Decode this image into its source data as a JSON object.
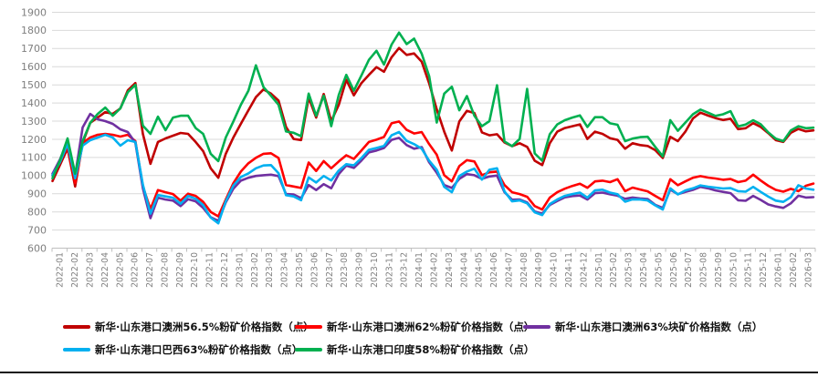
{
  "chart_data": {
    "type": "line",
    "title": "",
    "xlabel": "",
    "ylabel": "",
    "grid": true,
    "legend_position": "bottom",
    "y_axis": {
      "min": 600,
      "max": 1900,
      "step": 100,
      "ticks": [
        600,
        700,
        800,
        900,
        1000,
        1100,
        1200,
        1300,
        1400,
        1500,
        1600,
        1700,
        1800,
        1900
      ]
    },
    "x_axis": {
      "note": "monthly ticks, two data samples per month",
      "labels": [
        "2022-01",
        "2022-02",
        "2022-03",
        "2022-04",
        "2022-05",
        "2022-06",
        "2022-07",
        "2022-08",
        "2022-09",
        "2022-10",
        "2022-11",
        "2022-12",
        "2023-01",
        "2023-02",
        "2023-03",
        "2023-04",
        "2023-05",
        "2023-06",
        "2023-07",
        "2023-08",
        "2023-09",
        "2023-10",
        "2023-11",
        "2023-12",
        "2024-01",
        "2024-02",
        "2024-03",
        "2024-04",
        "2024-05",
        "2024-06",
        "2024-07",
        "2024-08",
        "2024-09",
        "2024-10",
        "2024-11",
        "2024-12",
        "2025-01",
        "2025-02",
        "2025-03",
        "2025-04",
        "2025-05",
        "2025-06",
        "2025-07",
        "2025-08",
        "2025-09",
        "2025-10",
        "2025-11",
        "2025-12",
        "2026-01",
        "2026-02",
        "2026-03"
      ]
    },
    "series": [
      {
        "name": "新华·山东港口澳洲56.5%粉矿价格指数（点）",
        "color": "#C00000",
        "values": [
          970,
          1060,
          1150,
          940,
          1180,
          1290,
          1320,
          1350,
          1340,
          1370,
          1470,
          1510,
          1230,
          1065,
          1185,
          1205,
          1220,
          1235,
          1230,
          1185,
          1135,
          1040,
          988,
          1120,
          1210,
          1285,
          1360,
          1432,
          1475,
          1452,
          1413,
          1268,
          1202,
          1196,
          1430,
          1320,
          1450,
          1300,
          1390,
          1528,
          1442,
          1510,
          1555,
          1598,
          1572,
          1652,
          1703,
          1665,
          1673,
          1628,
          1508,
          1365,
          1242,
          1138,
          1298,
          1357,
          1345,
          1238,
          1222,
          1228,
          1182,
          1162,
          1178,
          1158,
          1082,
          1058,
          1178,
          1242,
          1262,
          1272,
          1282,
          1202,
          1242,
          1230,
          1206,
          1197,
          1148,
          1178,
          1168,
          1163,
          1140,
          1097,
          1214,
          1190,
          1242,
          1315,
          1347,
          1331,
          1317,
          1306,
          1313,
          1256,
          1261,
          1289,
          1268,
          1234,
          1196,
          1186,
          1236,
          1257,
          1244,
          1249
        ]
      },
      {
        "name": "新华·山东港口澳洲62%粉矿价格指数（点）",
        "color": "#FF0000",
        "values": [
          1000,
          1080,
          1165,
          960,
          1180,
          1210,
          1225,
          1230,
          1225,
          1215,
          1225,
          1190,
          940,
          815,
          920,
          908,
          898,
          862,
          900,
          888,
          855,
          800,
          775,
          868,
          958,
          1022,
          1068,
          1098,
          1120,
          1123,
          1097,
          948,
          940,
          932,
          1072,
          1025,
          1080,
          1040,
          1078,
          1112,
          1092,
          1138,
          1185,
          1198,
          1213,
          1288,
          1298,
          1252,
          1232,
          1240,
          1173,
          1115,
          1002,
          968,
          1052,
          1085,
          1078,
          1002,
          1018,
          1022,
          948,
          908,
          898,
          883,
          832,
          813,
          878,
          908,
          928,
          943,
          955,
          933,
          968,
          972,
          964,
          980,
          914,
          934,
          923,
          913,
          888,
          864,
          980,
          947,
          968,
          988,
          997,
          989,
          984,
          977,
          981,
          964,
          972,
          1005,
          973,
          944,
          921,
          911,
          927,
          914,
          944,
          956
        ]
      },
      {
        "name": "新华·山东港口澳洲63%块矿价格指数（点）",
        "color": "#7030A0",
        "values": [
          1010,
          1090,
          1190,
          1000,
          1265,
          1340,
          1310,
          1300,
          1285,
          1255,
          1240,
          1180,
          930,
          765,
          878,
          868,
          862,
          832,
          870,
          858,
          822,
          770,
          750,
          852,
          928,
          972,
          988,
          998,
          1002,
          1005,
          997,
          898,
          896,
          875,
          948,
          920,
          953,
          930,
          1008,
          1055,
          1042,
          1083,
          1128,
          1138,
          1152,
          1197,
          1208,
          1168,
          1148,
          1157,
          1073,
          1015,
          948,
          932,
          982,
          1008,
          1002,
          982,
          995,
          1000,
          908,
          867,
          868,
          852,
          802,
          790,
          838,
          860,
          880,
          887,
          890,
          868,
          903,
          906,
          897,
          889,
          872,
          879,
          874,
          871,
          839,
          822,
          922,
          897,
          910,
          921,
          938,
          930,
          918,
          910,
          903,
          864,
          861,
          888,
          866,
          841,
          830,
          822,
          847,
          889,
          879,
          881
        ]
      },
      {
        "name": "新华·山东港口巴西63%粉矿价格指数（点）",
        "color": "#00B0F0",
        "values": [
          1000,
          1075,
          1175,
          985,
          1165,
          1195,
          1210,
          1225,
          1210,
          1165,
          1195,
          1185,
          950,
          790,
          893,
          885,
          878,
          845,
          888,
          872,
          838,
          768,
          737,
          858,
          945,
          992,
          1012,
          1040,
          1056,
          1058,
          1013,
          892,
          885,
          864,
          990,
          962,
          998,
          973,
          1028,
          1063,
          1057,
          1097,
          1142,
          1152,
          1163,
          1222,
          1240,
          1192,
          1173,
          1148,
          1082,
          1032,
          938,
          908,
          998,
          1022,
          1038,
          978,
          1032,
          1040,
          913,
          858,
          863,
          847,
          798,
          782,
          843,
          868,
          888,
          898,
          906,
          878,
          918,
          922,
          906,
          897,
          856,
          869,
          868,
          863,
          836,
          813,
          930,
          896,
          918,
          930,
          946,
          939,
          934,
          929,
          931,
          914,
          911,
          938,
          910,
          884,
          862,
          855,
          881,
          947,
          929,
          922
        ]
      },
      {
        "name": "新华·山东港口印度58%粉矿价格指数（点）",
        "color": "#00B050",
        "values": [
          985,
          1085,
          1205,
          1010,
          1190,
          1290,
          1340,
          1375,
          1330,
          1370,
          1460,
          1500,
          1275,
          1230,
          1325,
          1250,
          1320,
          1330,
          1330,
          1262,
          1230,
          1120,
          1080,
          1210,
          1298,
          1390,
          1468,
          1608,
          1488,
          1440,
          1390,
          1243,
          1236,
          1217,
          1452,
          1330,
          1440,
          1272,
          1445,
          1555,
          1468,
          1552,
          1638,
          1688,
          1612,
          1722,
          1788,
          1725,
          1755,
          1672,
          1548,
          1292,
          1452,
          1490,
          1360,
          1438,
          1330,
          1272,
          1300,
          1498,
          1188,
          1162,
          1202,
          1478,
          1122,
          1082,
          1228,
          1282,
          1305,
          1320,
          1332,
          1268,
          1322,
          1322,
          1288,
          1280,
          1190,
          1204,
          1212,
          1214,
          1158,
          1106,
          1305,
          1247,
          1292,
          1338,
          1364,
          1347,
          1329,
          1338,
          1355,
          1271,
          1281,
          1305,
          1283,
          1238,
          1204,
          1190,
          1249,
          1272,
          1261,
          1264
        ]
      }
    ],
    "style": {
      "gridline_color": "#d9d9d9",
      "axis_color": "#bfbfbf",
      "tick_label_color": "#7f7f7f",
      "line_width": 2.6
    }
  }
}
